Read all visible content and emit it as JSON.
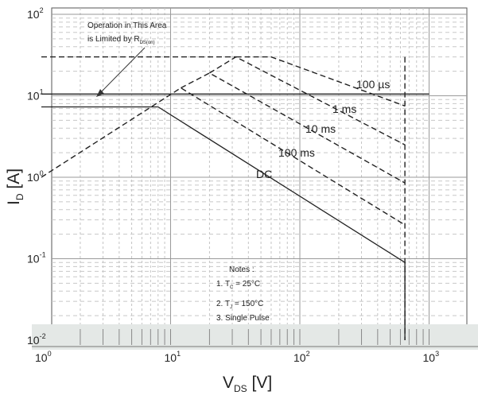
{
  "chart_data": {
    "type": "line",
    "x_scale": "log",
    "y_scale": "log",
    "xlim": [
      1,
      1000
    ],
    "ylim": [
      0.01,
      100
    ],
    "grid": true,
    "xlabel": {
      "main": "V",
      "sub": "DS",
      "unit": "[V]"
    },
    "ylabel": {
      "main": "I",
      "sub": "D",
      "unit": "[A]"
    },
    "x_ticks": [
      {
        "value": 1,
        "base": "10",
        "exp": "0"
      },
      {
        "value": 10,
        "base": "10",
        "exp": "1"
      },
      {
        "value": 100,
        "base": "10",
        "exp": "2"
      },
      {
        "value": 1000,
        "base": "10",
        "exp": "3"
      }
    ],
    "y_ticks": [
      {
        "value": 100,
        "base": "10",
        "exp": "2"
      },
      {
        "value": 10,
        "base": "10",
        "exp": "1"
      },
      {
        "value": 1,
        "base": "10",
        "exp": "0"
      },
      {
        "value": 0.1,
        "base": "10",
        "exp": "-1"
      },
      {
        "value": 0.01,
        "base": "10",
        "exp": "-2"
      }
    ],
    "series": [
      {
        "name": "DC",
        "style": "solid",
        "points": [
          [
            1,
            7.3
          ],
          [
            8,
            7.3
          ],
          [
            650,
            0.09
          ]
        ]
      },
      {
        "name": "100 ms",
        "style": "dashed",
        "points": [
          [
            1,
            1.0
          ],
          [
            12,
            12.5
          ],
          [
            650,
            0.26
          ]
        ]
      },
      {
        "name": "10 ms",
        "style": "dashed",
        "points": [
          [
            12,
            12.5
          ],
          [
            20,
            19
          ],
          [
            650,
            0.85
          ]
        ]
      },
      {
        "name": "1 ms",
        "style": "dashed",
        "points": [
          [
            20,
            19
          ],
          [
            32,
            30
          ],
          [
            650,
            2.5
          ]
        ]
      },
      {
        "name": "100 µs",
        "style": "dashed",
        "points": [
          [
            32,
            30
          ],
          [
            60,
            30
          ],
          [
            650,
            7.5
          ]
        ]
      },
      {
        "name": "",
        "style": "dashed",
        "points": [
          [
            1,
            30
          ],
          [
            32,
            30
          ]
        ]
      },
      {
        "name": "",
        "style": "dashed",
        "points": [
          [
            650,
            30
          ],
          [
            650,
            0.01
          ]
        ]
      },
      {
        "name": "",
        "style": "solid",
        "points": [
          [
            1,
            10.5
          ],
          [
            1000,
            10.5
          ]
        ]
      },
      {
        "name": "",
        "style": "solid",
        "points": [
          [
            650,
            0.09
          ],
          [
            650,
            0.01
          ]
        ]
      }
    ],
    "annotations": {
      "rds_line1": "Operation in This Area",
      "rds_line2": "is Limited by R",
      "rds_sub": "DS(on)",
      "label_100us_num": "100",
      "label_100us_unit": "µs",
      "label_1ms": "1 ms",
      "label_10ms": "10 ms",
      "label_100ms": "100 ms",
      "label_dc": "DC",
      "notes_title": "Notes :",
      "note1_pre": "1. T",
      "note1_sub": "C",
      "note1_post": " = 25°C",
      "note2_pre": "2. T",
      "note2_sub": "J",
      "note2_post": " = 150°C",
      "note3": "3. Single Pulse"
    }
  }
}
